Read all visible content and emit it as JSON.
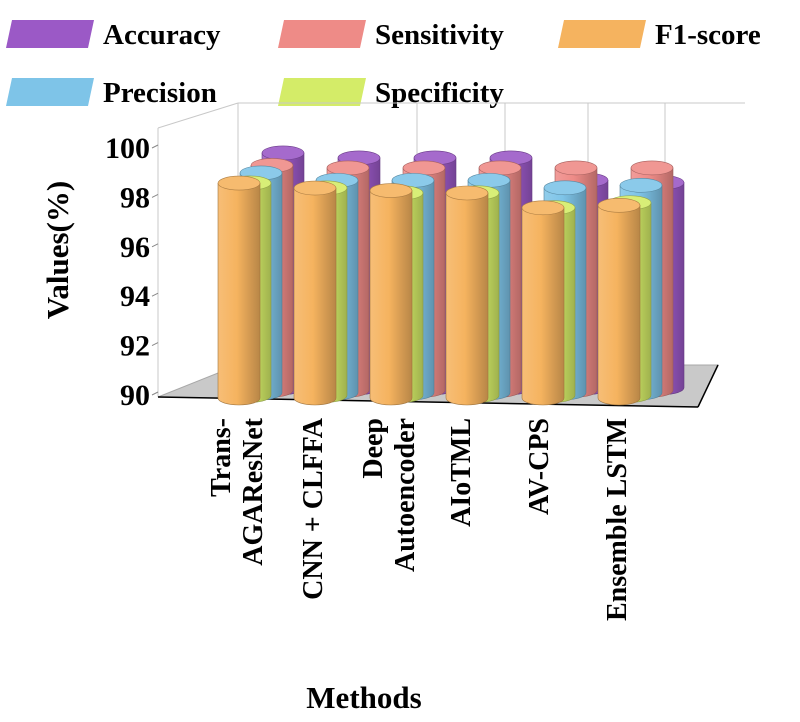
{
  "chart_data": {
    "type": "bar",
    "style": "3d-cylinder",
    "title": "",
    "xlabel": "Methods",
    "ylabel": "Values(%)",
    "ylim": [
      90,
      100
    ],
    "yticks": [
      "90",
      "92",
      "94",
      "96",
      "98",
      "100"
    ],
    "grid": false,
    "legend_position": "top",
    "categories": [
      [
        "Trans-",
        "AGAResNet"
      ],
      [
        "CNN + CLFFA"
      ],
      [
        "Deep",
        "Autoencoder"
      ],
      [
        "AIoTML"
      ],
      [
        "AV-CPS"
      ],
      [
        "Ensemble LSTM"
      ]
    ],
    "series": [
      {
        "name": "Accuracy",
        "color": "#9b59c6",
        "values": [
          99.5,
          99.3,
          99.3,
          99.3,
          98.4,
          98.3
        ]
      },
      {
        "name": "Sensitivity",
        "color": "#ee8b87",
        "values": [
          99.1,
          99.0,
          99.0,
          99.0,
          99.0,
          99.0
        ]
      },
      {
        "name": "F1-score",
        "color": "#f5b35f",
        "values": [
          98.7,
          98.5,
          98.4,
          98.3,
          97.7,
          97.8
        ]
      },
      {
        "name": "Precision",
        "color": "#7ec4e8",
        "values": [
          98.9,
          98.6,
          98.6,
          98.6,
          98.3,
          98.4
        ]
      },
      {
        "name": "Specificity",
        "color": "#d4ec68",
        "values": [
          98.6,
          98.4,
          98.2,
          98.2,
          97.6,
          97.8
        ]
      }
    ]
  }
}
